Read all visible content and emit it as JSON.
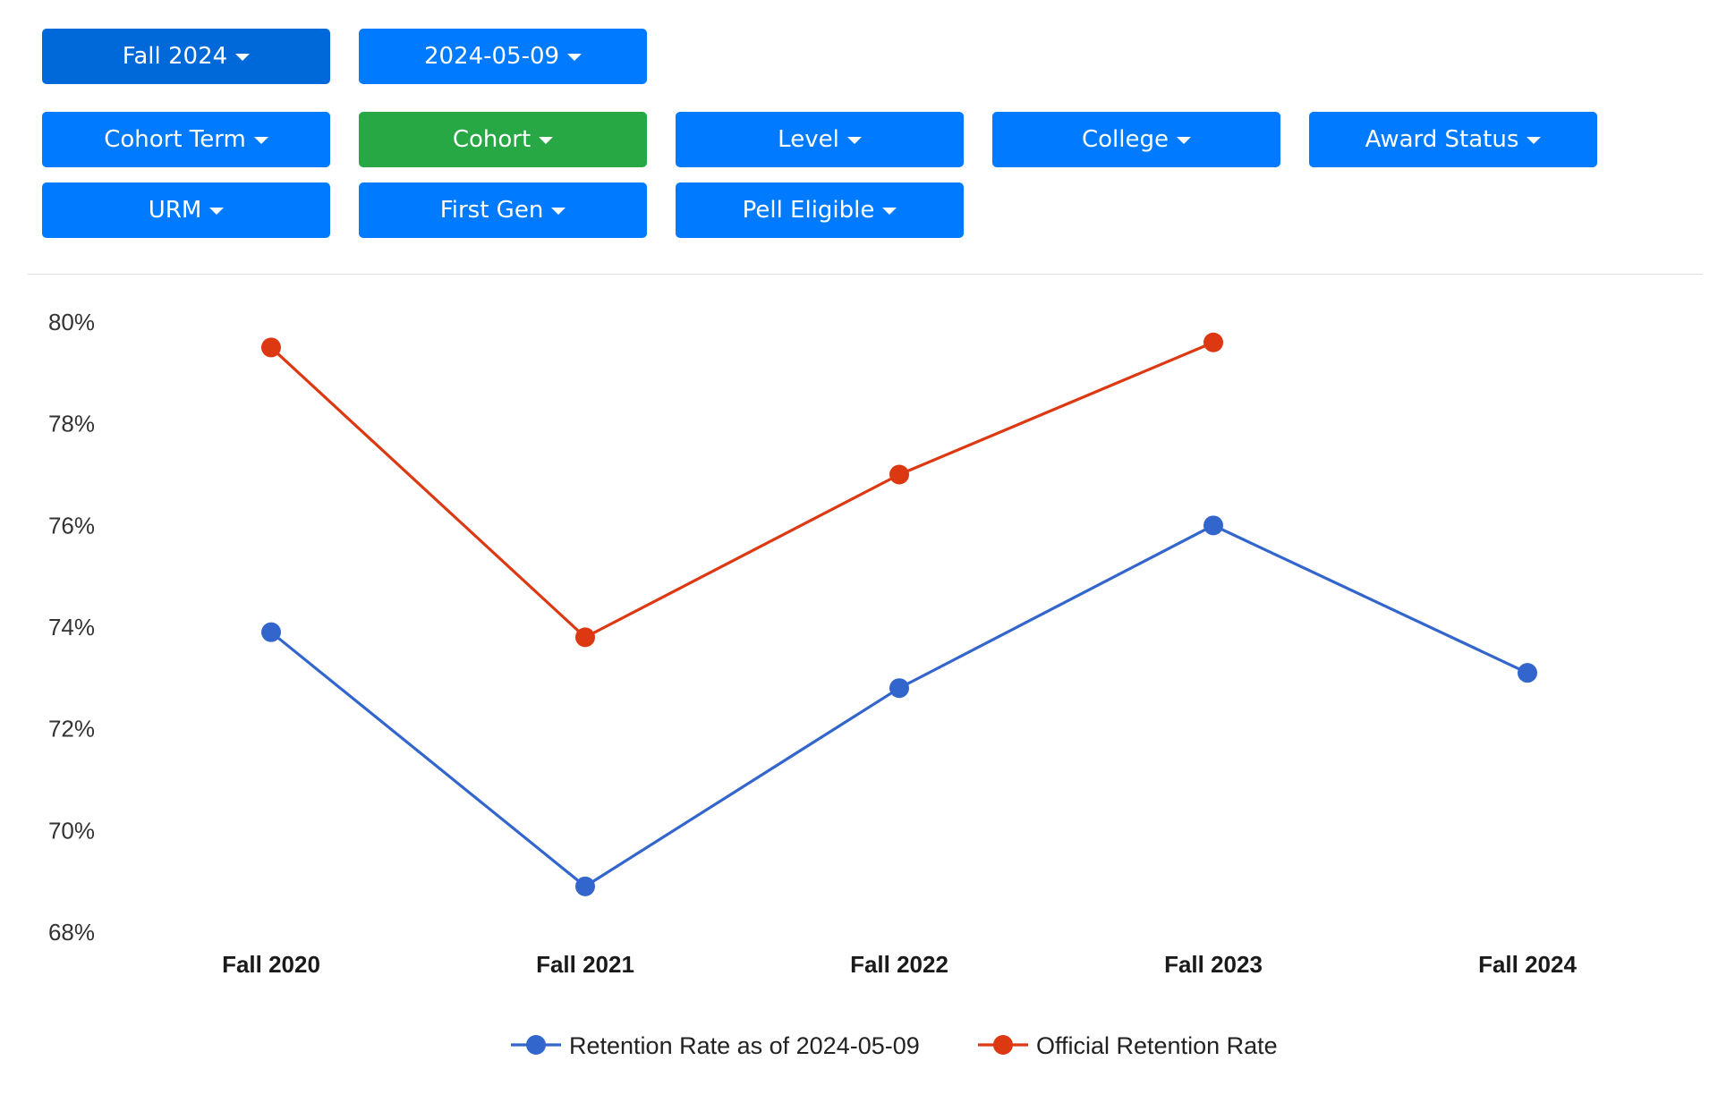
{
  "colors": {
    "primary_button": "#007bff",
    "primary_button_active": "#0069d9",
    "success_button": "#28a745",
    "series_retention": "#3366cc",
    "series_official": "#dc3912"
  },
  "filters": {
    "term": {
      "label": "Fall 2024",
      "icon": "caret-down-icon"
    },
    "date": {
      "label": "2024-05-09",
      "icon": "caret-down-icon"
    },
    "cohort_term": {
      "label": "Cohort Term",
      "icon": "caret-down-icon"
    },
    "cohort": {
      "label": "Cohort",
      "icon": "caret-down-icon"
    },
    "level": {
      "label": "Level",
      "icon": "caret-down-icon"
    },
    "college": {
      "label": "College",
      "icon": "caret-down-icon"
    },
    "award_status": {
      "label": "Award Status",
      "icon": "caret-down-icon"
    },
    "urm": {
      "label": "URM",
      "icon": "caret-down-icon"
    },
    "first_gen": {
      "label": "First Gen",
      "icon": "caret-down-icon"
    },
    "pell_eligible": {
      "label": "Pell Eligible",
      "icon": "caret-down-icon"
    }
  },
  "chart_data": {
    "type": "line",
    "title": "",
    "xlabel": "",
    "ylabel": "",
    "categories": [
      "Fall 2020",
      "Fall 2021",
      "Fall 2022",
      "Fall 2023",
      "Fall 2024"
    ],
    "y_ticks": [
      "80%",
      "78%",
      "76%",
      "74%",
      "72%",
      "70%",
      "68%"
    ],
    "ylim": [
      68,
      80
    ],
    "grid": false,
    "legend_position": "bottom",
    "series": [
      {
        "name": "Retention Rate as of 2024-05-09",
        "color": "#3366cc",
        "values": [
          73.9,
          68.9,
          72.8,
          76.0,
          73.1
        ]
      },
      {
        "name": "Official Retention Rate",
        "color": "#dc3912",
        "values": [
          79.5,
          73.8,
          77.0,
          79.6,
          null
        ]
      }
    ]
  }
}
